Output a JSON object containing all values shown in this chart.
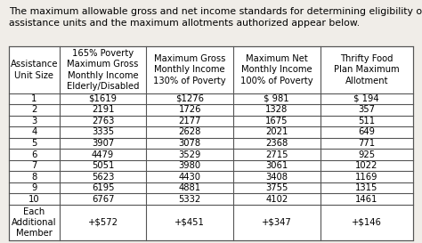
{
  "intro_text": "The maximum allowable gross and net income standards for determining eligibility of\nassistance units and the maximum allotments authorized appear below.",
  "col_headers": [
    "Assistance\nUnit Size",
    "165% Poverty\nMaximum Gross\nMonthly Income\nElderly/Disabled",
    "Maximum Gross\nMonthly Income\n130% of Poverty",
    "Maximum Net\nMonthly Income\n100% of Poverty",
    "Thrifty Food\nPlan Maximum\nAllotment"
  ],
  "rows": [
    [
      "1",
      "$1619",
      "$1276",
      "$ 981",
      "$ 194"
    ],
    [
      "2",
      "2191",
      "1726",
      "1328",
      "357"
    ],
    [
      "3",
      "2763",
      "2177",
      "1675",
      "511"
    ],
    [
      "4",
      "3335",
      "2628",
      "2021",
      "649"
    ],
    [
      "5",
      "3907",
      "3078",
      "2368",
      "771"
    ],
    [
      "6",
      "4479",
      "3529",
      "2715",
      "925"
    ],
    [
      "7",
      "5051",
      "3980",
      "3061",
      "1022"
    ],
    [
      "8",
      "5623",
      "4430",
      "3408",
      "1169"
    ],
    [
      "9",
      "6195",
      "4881",
      "3755",
      "1315"
    ],
    [
      "10",
      "6767",
      "5332",
      "4102",
      "1461"
    ],
    [
      "Each\nAdditional\nMember",
      "+$572",
      "+$451",
      "+$347",
      "+$146"
    ]
  ],
  "bg_color": "#f0ede8",
  "table_bg": "#ffffff",
  "border_color": "#555555",
  "text_color": "#000000",
  "font_size": 7.2,
  "header_font_size": 7.2,
  "intro_font_size": 7.8
}
